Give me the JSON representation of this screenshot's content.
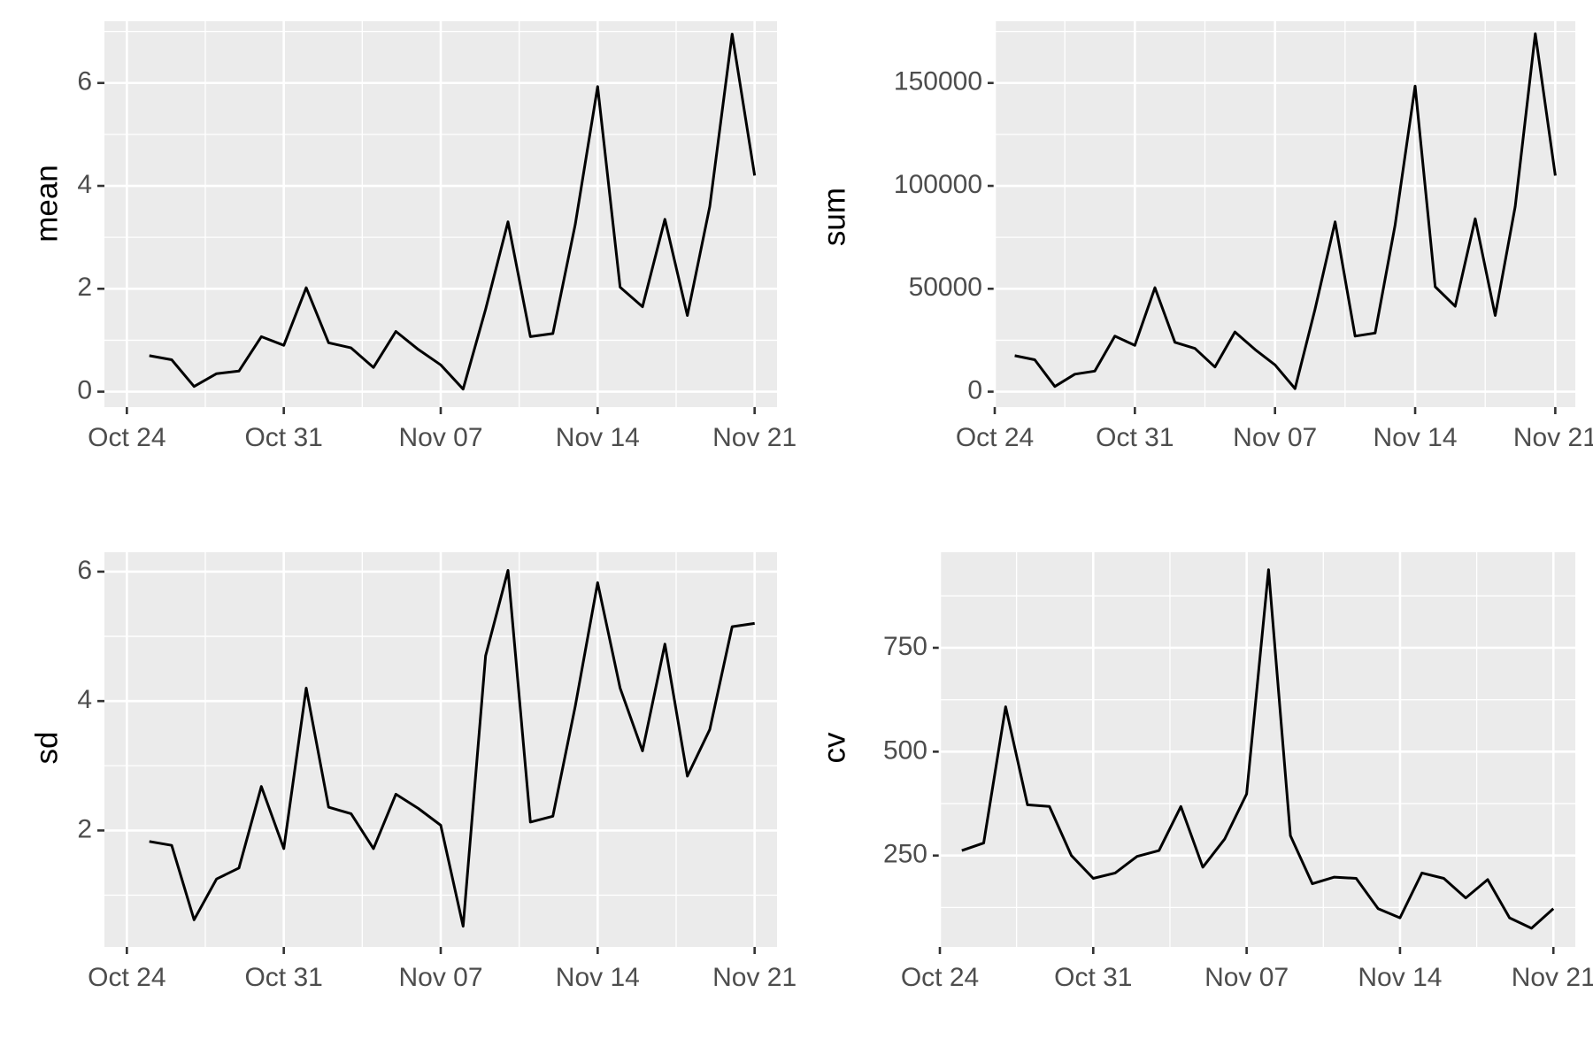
{
  "chart_data": [
    {
      "type": "line",
      "ylabel": "mean",
      "xlabel": "",
      "x_ticks": [
        "Oct 24",
        "Oct 31",
        "Nov 07",
        "Nov 14",
        "Nov 21"
      ],
      "x_tick_dates": [
        "2021-10-24",
        "2021-10-31",
        "2021-11-07",
        "2021-11-14",
        "2021-11-21"
      ],
      "xlim": [
        "2021-10-23",
        "2021-11-22"
      ],
      "y_ticks": [
        0,
        2,
        4,
        6
      ],
      "ylim": [
        -0.3,
        7.2
      ],
      "grid": true,
      "x": [
        "2021-10-25",
        "2021-10-26",
        "2021-10-27",
        "2021-10-28",
        "2021-10-29",
        "2021-10-30",
        "2021-10-31",
        "2021-11-01",
        "2021-11-02",
        "2021-11-03",
        "2021-11-04",
        "2021-11-05",
        "2021-11-06",
        "2021-11-07",
        "2021-11-08",
        "2021-11-09",
        "2021-11-10",
        "2021-11-11",
        "2021-11-12",
        "2021-11-13",
        "2021-11-14",
        "2021-11-15",
        "2021-11-16",
        "2021-11-17",
        "2021-11-18",
        "2021-11-19",
        "2021-11-20",
        "2021-11-21"
      ],
      "values": [
        0.7,
        0.62,
        0.1,
        0.35,
        0.4,
        1.07,
        0.9,
        2.02,
        0.95,
        0.85,
        0.47,
        1.17,
        0.82,
        0.52,
        0.05,
        1.6,
        3.3,
        1.07,
        1.13,
        3.25,
        5.93,
        2.03,
        1.65,
        3.35,
        1.48,
        3.6,
        6.95,
        4.2
      ]
    },
    {
      "type": "line",
      "ylabel": "sum",
      "xlabel": "",
      "x_ticks": [
        "Oct 24",
        "Oct 31",
        "Nov 07",
        "Nov 14",
        "Nov 21"
      ],
      "x_tick_dates": [
        "2021-10-24",
        "2021-10-31",
        "2021-11-07",
        "2021-11-14",
        "2021-11-21"
      ],
      "xlim": [
        "2021-10-24",
        "2021-11-22"
      ],
      "y_ticks": [
        0,
        50000,
        100000,
        150000
      ],
      "ylim": [
        -7500,
        180000
      ],
      "grid": true,
      "x": [
        "2021-10-25",
        "2021-10-26",
        "2021-10-27",
        "2021-10-28",
        "2021-10-29",
        "2021-10-30",
        "2021-10-31",
        "2021-11-01",
        "2021-11-02",
        "2021-11-03",
        "2021-11-04",
        "2021-11-05",
        "2021-11-06",
        "2021-11-07",
        "2021-11-08",
        "2021-11-09",
        "2021-11-10",
        "2021-11-11",
        "2021-11-12",
        "2021-11-13",
        "2021-11-14",
        "2021-11-15",
        "2021-11-16",
        "2021-11-17",
        "2021-11-18",
        "2021-11-19",
        "2021-11-20",
        "2021-11-21"
      ],
      "values": [
        17500,
        15500,
        2500,
        8500,
        10000,
        27000,
        22500,
        50500,
        24000,
        21000,
        12000,
        29000,
        20500,
        13000,
        1500,
        40000,
        82500,
        27000,
        28500,
        81000,
        148500,
        51000,
        41500,
        84000,
        37000,
        90000,
        174000,
        105000
      ]
    },
    {
      "type": "line",
      "ylabel": "sd",
      "xlabel": "",
      "x_ticks": [
        "Oct 24",
        "Oct 31",
        "Nov 07",
        "Nov 14",
        "Nov 21"
      ],
      "x_tick_dates": [
        "2021-10-24",
        "2021-10-31",
        "2021-11-07",
        "2021-11-14",
        "2021-11-21"
      ],
      "xlim": [
        "2021-10-23",
        "2021-11-22"
      ],
      "y_ticks": [
        2,
        4,
        6
      ],
      "ylim": [
        0.2,
        6.3
      ],
      "grid": true,
      "x": [
        "2021-10-25",
        "2021-10-26",
        "2021-10-27",
        "2021-10-28",
        "2021-10-29",
        "2021-10-30",
        "2021-10-31",
        "2021-11-01",
        "2021-11-02",
        "2021-11-03",
        "2021-11-04",
        "2021-11-05",
        "2021-11-06",
        "2021-11-07",
        "2021-11-08",
        "2021-11-09",
        "2021-11-10",
        "2021-11-11",
        "2021-11-12",
        "2021-11-13",
        "2021-11-14",
        "2021-11-15",
        "2021-11-16",
        "2021-11-17",
        "2021-11-18",
        "2021-11-19",
        "2021-11-20",
        "2021-11-21"
      ],
      "values": [
        1.83,
        1.77,
        0.62,
        1.25,
        1.42,
        2.68,
        1.72,
        4.2,
        2.36,
        2.26,
        1.72,
        2.56,
        2.34,
        2.08,
        0.52,
        4.7,
        6.02,
        2.13,
        2.22,
        3.92,
        5.83,
        4.2,
        3.23,
        4.88,
        2.84,
        3.56,
        5.15,
        5.2
      ]
    },
    {
      "type": "line",
      "ylabel": "cv",
      "xlabel": "",
      "x_ticks": [
        "Oct 24",
        "Oct 31",
        "Nov 07",
        "Nov 14",
        "Nov 21"
      ],
      "x_tick_dates": [
        "2021-10-24",
        "2021-10-31",
        "2021-11-07",
        "2021-11-14",
        "2021-11-21"
      ],
      "xlim": [
        "2021-10-24",
        "2021-11-22"
      ],
      "y_ticks": [
        250,
        500,
        750
      ],
      "ylim": [
        30,
        980
      ],
      "grid": true,
      "x": [
        "2021-10-25",
        "2021-10-26",
        "2021-10-27",
        "2021-10-28",
        "2021-10-29",
        "2021-10-30",
        "2021-10-31",
        "2021-11-01",
        "2021-11-02",
        "2021-11-03",
        "2021-11-04",
        "2021-11-05",
        "2021-11-06",
        "2021-11-07",
        "2021-11-08",
        "2021-11-09",
        "2021-11-10",
        "2021-11-11",
        "2021-11-12",
        "2021-11-13",
        "2021-11-14",
        "2021-11-15",
        "2021-11-16",
        "2021-11-17",
        "2021-11-18",
        "2021-11-19",
        "2021-11-20",
        "2021-11-21"
      ],
      "values": [
        262,
        280,
        608,
        372,
        368,
        250,
        195,
        208,
        248,
        262,
        368,
        222,
        290,
        398,
        938,
        298,
        182,
        198,
        195,
        122,
        100,
        208,
        195,
        148,
        192,
        100,
        75,
        122
      ]
    }
  ]
}
